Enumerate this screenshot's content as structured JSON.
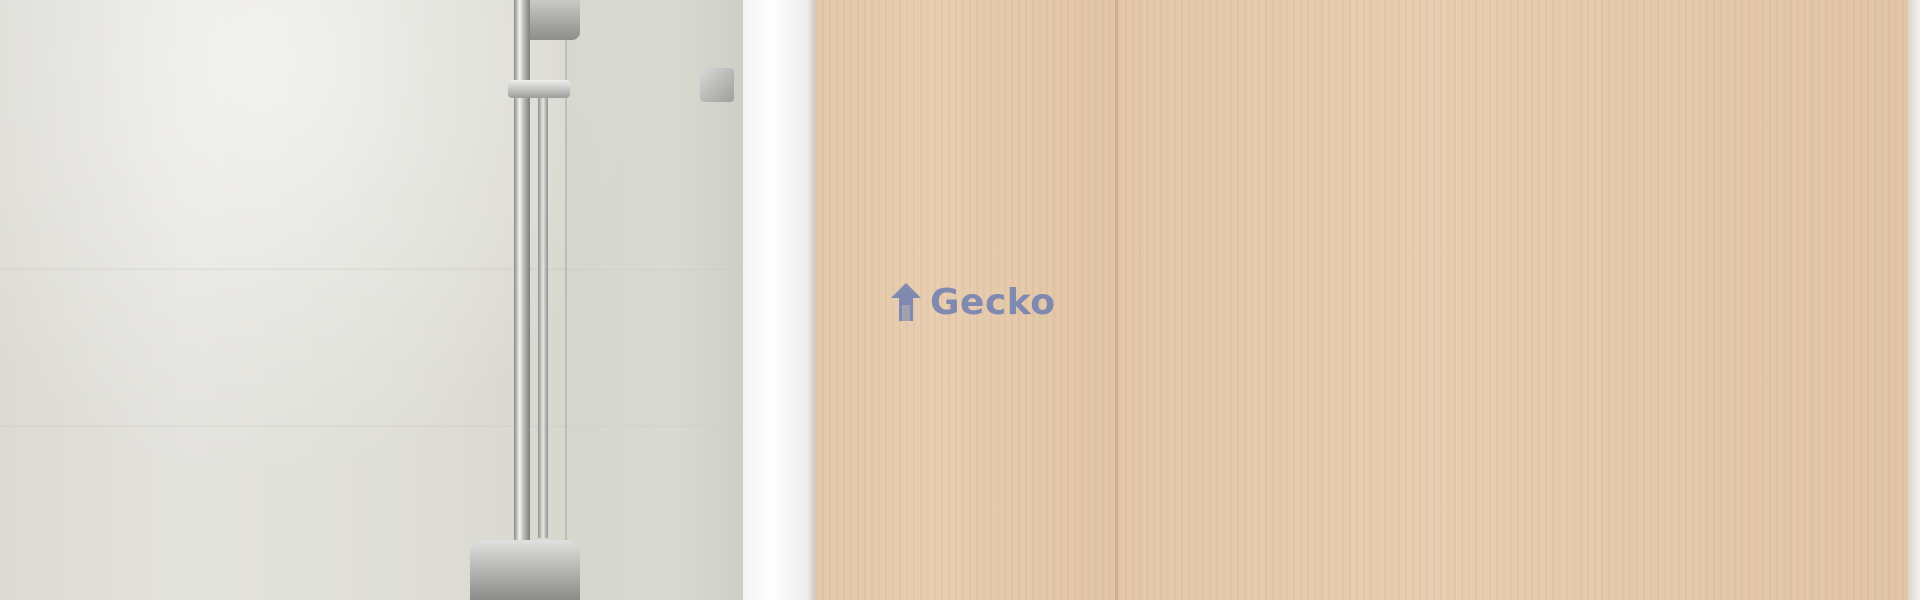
{
  "watermark": {
    "text": "Gecko",
    "color": "#6f7fb2",
    "icon": "house-arrow-icon"
  },
  "scene": {
    "description_colors": {
      "glass_wall": "#dfdfd8",
      "wood": "#e6caab",
      "frame": "#ffffff"
    }
  }
}
